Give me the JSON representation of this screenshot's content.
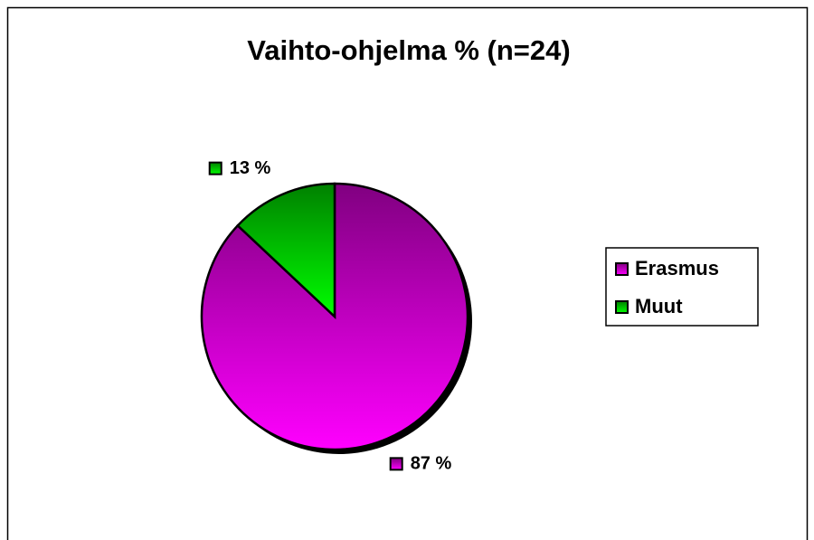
{
  "chart_data": {
    "type": "pie",
    "title": "Vaihto-ohjelma % (n=24)",
    "categories": [
      "Erasmus",
      "Muut"
    ],
    "values": [
      87,
      13
    ],
    "value_labels": [
      "87 %",
      "13 %"
    ],
    "colors": [
      "#ff00ff",
      "#00ff00"
    ],
    "legend": "right"
  }
}
